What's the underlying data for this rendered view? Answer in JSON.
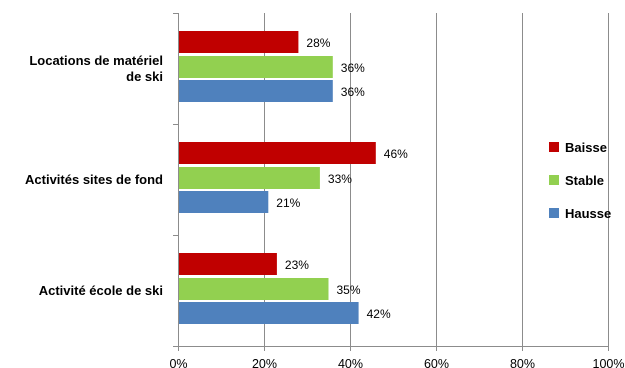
{
  "chart_data": {
    "type": "bar",
    "orientation": "horizontal",
    "title": "",
    "xlabel": "",
    "ylabel": "",
    "xlim": [
      0,
      100
    ],
    "x_ticks": [
      "0%",
      "20%",
      "40%",
      "60%",
      "80%",
      "100%"
    ],
    "grid": "vertical",
    "legend_position": "right",
    "categories": [
      {
        "lines": [
          "Locations de matériel",
          "de ski"
        ]
      },
      {
        "lines": [
          "Activités sites de fond"
        ]
      },
      {
        "lines": [
          "Activité école de ski"
        ]
      }
    ],
    "series": [
      {
        "name": "Baisse",
        "color": "#c00000",
        "values": [
          28,
          46,
          23
        ],
        "labels": [
          "28%",
          "46%",
          "23%"
        ]
      },
      {
        "name": "Stable",
        "color": "#92d050",
        "values": [
          36,
          33,
          35
        ],
        "labels": [
          "36%",
          "33%",
          "35%"
        ]
      },
      {
        "name": "Hausse",
        "color": "#4f81bd",
        "values": [
          36,
          21,
          42
        ],
        "labels": [
          "36%",
          "21%",
          "42%"
        ]
      }
    ]
  }
}
